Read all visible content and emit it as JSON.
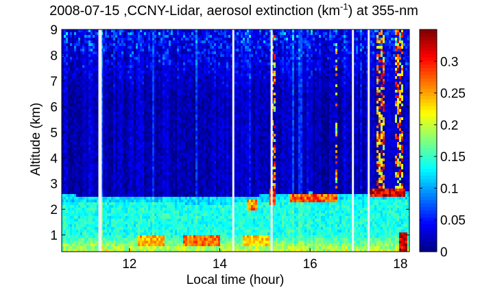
{
  "chart_data": {
    "type": "heatmap",
    "title": {
      "prefix": "2008-07-15 ,CCNY-Lidar, aerosol extinction (km",
      "superscript": "-1",
      "suffix": ") at 355-nm"
    },
    "xlabel": "Local time (hour)",
    "ylabel": "Altitude (km)",
    "xlim": [
      10.5,
      18.2
    ],
    "ylim": [
      0.35,
      9
    ],
    "x_ticks": [
      12,
      14,
      16,
      18
    ],
    "y_ticks": [
      1,
      2,
      3,
      4,
      5,
      6,
      7,
      8,
      9
    ],
    "colorbar": {
      "colormap": "jet",
      "clim": [
        0,
        0.35
      ],
      "ticks": [
        0,
        0.05,
        0.1,
        0.15,
        0.2,
        0.25,
        0.3
      ]
    },
    "data_gaps_hours": [
      11.35,
      14.3,
      15.15,
      16.95,
      17.3
    ],
    "boundary_layer_top_km": [
      [
        10.5,
        2.55
      ],
      [
        12.0,
        2.5
      ],
      [
        14.0,
        2.45
      ],
      [
        15.0,
        2.55
      ],
      [
        16.0,
        2.65
      ],
      [
        17.0,
        2.6
      ],
      [
        17.35,
        2.6
      ],
      [
        17.5,
        2.65
      ],
      [
        18.2,
        2.65
      ]
    ],
    "typical_extinction_km-1": {
      "free_troposphere": 0.02,
      "boundary_layer": 0.14,
      "near_surface_peak": 0.3,
      "cloud_layers": 0.34
    },
    "elevated_aerosol_plumes": [
      {
        "time_hours": [
          17.35,
          18.1
        ],
        "altitude_km": [
          2.45,
          2.85
        ],
        "value": 0.34
      },
      {
        "time_hours": [
          15.1,
          15.25
        ],
        "altitude_km": [
          2.2,
          2.8
        ],
        "value": 0.32
      },
      {
        "time_hours": [
          15.55,
          16.6
        ],
        "altitude_km": [
          2.3,
          2.6
        ],
        "value": 0.3
      },
      {
        "time_hours": [
          14.6,
          14.85
        ],
        "altitude_km": [
          2.0,
          2.4
        ],
        "value": 0.28
      }
    ],
    "cloud_columns": [
      {
        "time_hours": [
          15.15,
          15.25
        ],
        "altitude_km": [
          2.7,
          8.8
        ],
        "value": 0.33
      },
      {
        "time_hours": [
          16.55,
          16.62
        ],
        "altitude_km": [
          2.7,
          8.5
        ],
        "value": 0.3
      },
      {
        "time_hours": [
          17.45,
          17.65
        ],
        "altitude_km": [
          2.8,
          9.0
        ],
        "value": 0.34
      },
      {
        "time_hours": [
          17.9,
          18.05
        ],
        "altitude_km": [
          2.8,
          9.0
        ],
        "value": 0.34
      }
    ],
    "surface_hotspots": [
      {
        "time_hours": [
          12.2,
          12.8
        ],
        "altitude_km": [
          0.6,
          0.95
        ],
        "value": 0.26
      },
      {
        "time_hours": [
          13.2,
          14.0
        ],
        "altitude_km": [
          0.6,
          1.0
        ],
        "value": 0.28
      },
      {
        "time_hours": [
          14.5,
          15.1
        ],
        "altitude_km": [
          0.6,
          0.95
        ],
        "value": 0.25
      },
      {
        "time_hours": [
          17.95,
          18.15
        ],
        "altitude_km": [
          0.4,
          1.1
        ],
        "value": 0.34
      }
    ]
  }
}
